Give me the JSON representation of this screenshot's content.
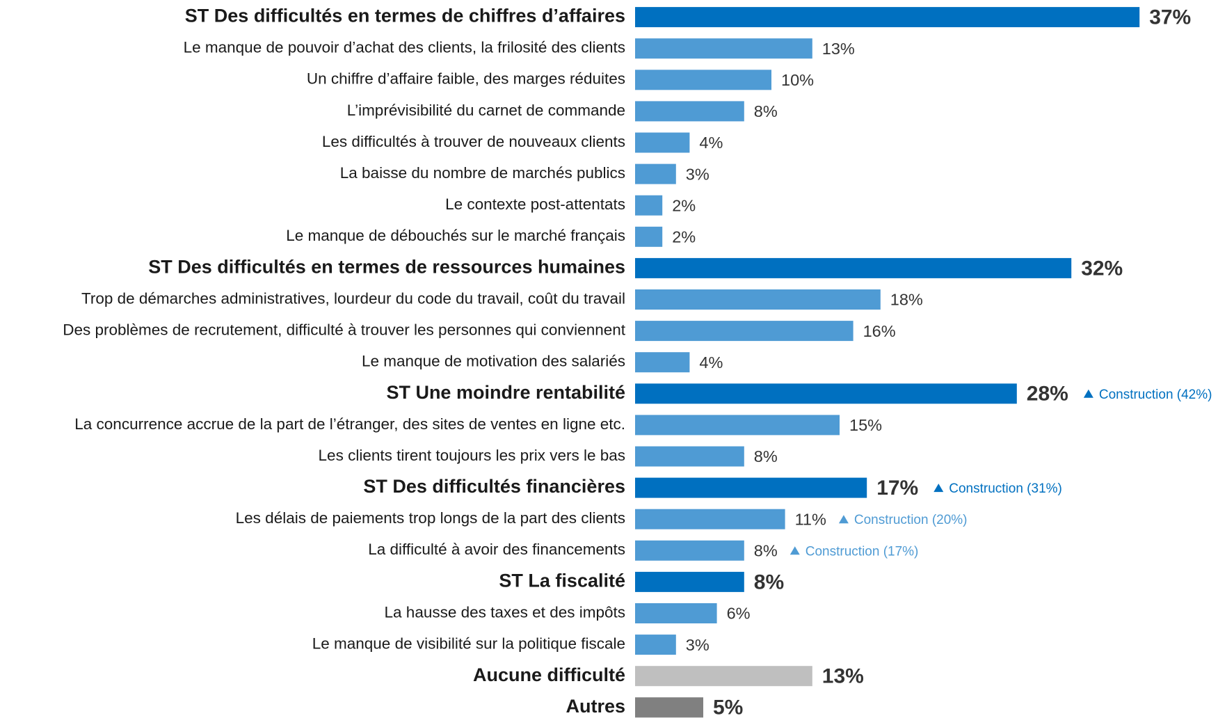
{
  "chart_data": {
    "type": "bar",
    "orientation": "horizontal",
    "categories": [
      "ST Des difficultés en termes de chiffres d’affaires",
      "Le manque de pouvoir d’achat des clients, la frilosité des clients",
      "Un chiffre d’affaire faible, des marges réduites",
      "L’imprévisibilité du carnet de commande",
      "Les difficultés à trouver de nouveaux clients",
      "La baisse du nombre de marchés publics",
      "Le contexte post-attentats",
      "Le manque de débouchés sur le marché français",
      "ST Des difficultés en termes de ressources humaines",
      "Trop de démarches administratives, lourdeur du code du travail, coût du travail",
      "Des problèmes de recrutement, difficulté à trouver les personnes qui conviennent",
      "Le manque de motivation des salariés",
      "ST Une moindre rentabilité",
      "La concurrence accrue de la part de l’étranger, des sites de ventes en ligne etc.",
      "Les clients tirent toujours les prix vers le bas",
      "ST Des difficultés financières",
      "Les délais de paiements trop longs de la part des clients",
      "La difficulté à avoir des financements",
      "ST La fiscalité",
      "La hausse des taxes et des impôts",
      "Le manque de visibilité sur la politique fiscale",
      "Aucune difficulté",
      "Autres"
    ],
    "values": [
      37,
      13,
      10,
      8,
      4,
      3,
      2,
      2,
      32,
      18,
      16,
      4,
      28,
      15,
      8,
      17,
      11,
      8,
      8,
      6,
      3,
      13,
      5
    ],
    "value_labels": [
      "37%",
      "13%",
      "10%",
      "8%",
      "4%",
      "3%",
      "2%",
      "2%",
      "32%",
      "18%",
      "16%",
      "4%",
      "28%",
      "15%",
      "8%",
      "17%",
      "11%",
      "8%",
      "8%",
      "6%",
      "3%",
      "13%",
      "5%"
    ],
    "colors": [
      "#0070c0",
      "#4f9bd4",
      "#4f9bd4",
      "#4f9bd4",
      "#4f9bd4",
      "#4f9bd4",
      "#4f9bd4",
      "#4f9bd4",
      "#0070c0",
      "#4f9bd4",
      "#4f9bd4",
      "#4f9bd4",
      "#0070c0",
      "#4f9bd4",
      "#4f9bd4",
      "#0070c0",
      "#4f9bd4",
      "#4f9bd4",
      "#0070c0",
      "#4f9bd4",
      "#4f9bd4",
      "#bfbfbf",
      "#808080"
    ],
    "bold": [
      true,
      false,
      false,
      false,
      false,
      false,
      false,
      false,
      true,
      false,
      false,
      false,
      true,
      false,
      false,
      true,
      false,
      false,
      true,
      false,
      false,
      true,
      true
    ],
    "annotations": [
      null,
      null,
      null,
      null,
      null,
      null,
      null,
      null,
      null,
      null,
      null,
      null,
      "Construction (42%)",
      null,
      null,
      "Construction (31%)",
      "Construction (20%)",
      "Construction (17%)",
      null,
      null,
      null,
      null,
      null
    ]
  }
}
